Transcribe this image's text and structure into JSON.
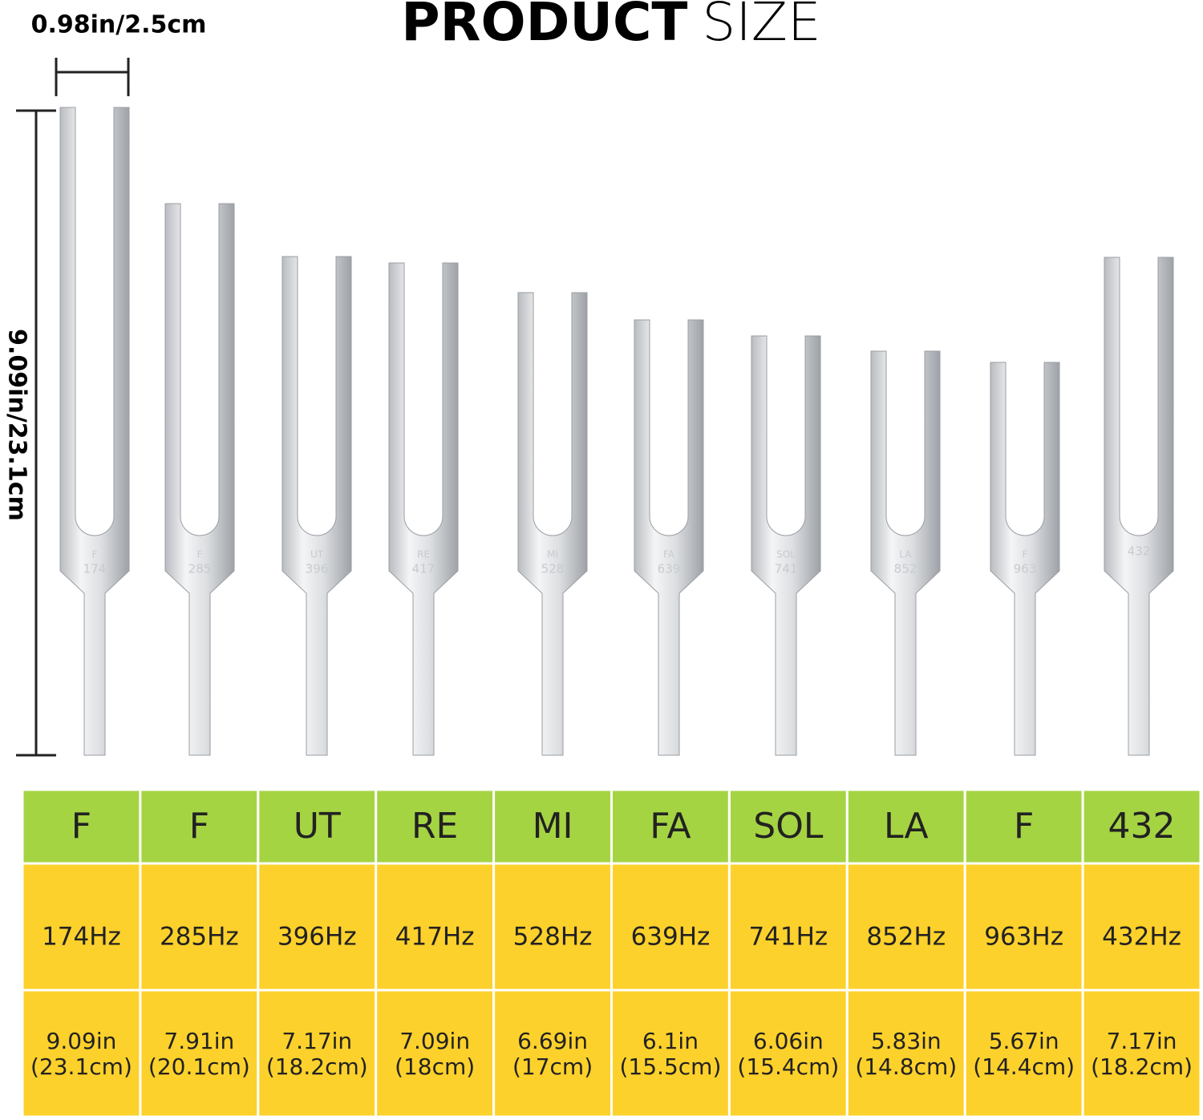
{
  "header": {
    "title_bold": "PRODUCT",
    "title_light": "SIZE"
  },
  "dimensions": {
    "width": "0.98in/2.5cm",
    "height": "9.09in/23.1cm"
  },
  "forks": [
    {
      "note": "F",
      "frequency": "174"
    },
    {
      "note": "F",
      "frequency": "285"
    },
    {
      "note": "UT",
      "frequency": "396"
    },
    {
      "note": "RE",
      "frequency": "417"
    },
    {
      "note": "MI",
      "frequency": "528"
    },
    {
      "note": "FA",
      "frequency": "639"
    },
    {
      "note": "SOL",
      "frequency": "741"
    },
    {
      "note": "LA",
      "frequency": "852"
    },
    {
      "note": "F",
      "frequency": "963"
    },
    {
      "frequency": "432"
    }
  ],
  "table": {
    "notes": [
      "F",
      "F",
      "UT",
      "RE",
      "MI",
      "FA",
      "SOL",
      "LA",
      "F",
      "432"
    ],
    "frequencies": [
      "174Hz",
      "285Hz",
      "396Hz",
      "417Hz",
      "528Hz",
      "639Hz",
      "741Hz",
      "852Hz",
      "963Hz",
      "432Hz"
    ],
    "lengths": [
      [
        "9.09in",
        "(23.1cm)"
      ],
      [
        "7.91in",
        "(20.1cm)"
      ],
      [
        "7.17in",
        "(18.2cm)"
      ],
      [
        "7.09in",
        "(18cm)"
      ],
      [
        "6.69in",
        "(17cm)"
      ],
      [
        "6.1in",
        "(15.5cm)"
      ],
      [
        "6.06in",
        "(15.4cm)"
      ],
      [
        "5.83in",
        "(14.8cm)"
      ],
      [
        "5.67in",
        "(14.4cm)"
      ],
      [
        "7.17in",
        "(18.2cm)"
      ]
    ]
  }
}
